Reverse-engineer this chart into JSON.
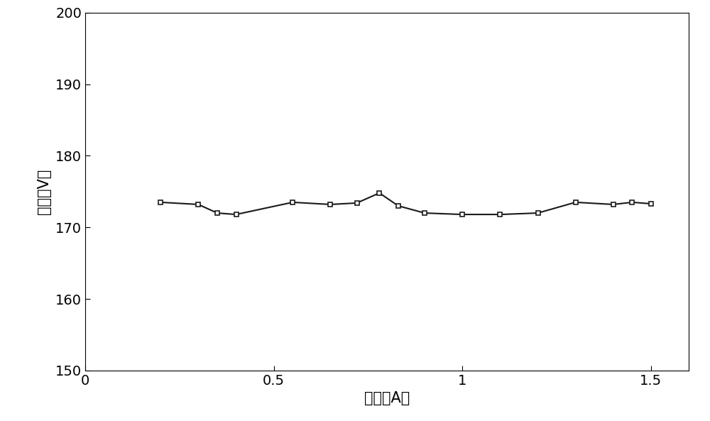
{
  "x": [
    0.2,
    0.3,
    0.35,
    0.4,
    0.55,
    0.65,
    0.72,
    0.78,
    0.83,
    0.9,
    1.0,
    1.1,
    1.2,
    1.3,
    1.4,
    1.45,
    1.5
  ],
  "y": [
    173.5,
    173.2,
    172.0,
    171.8,
    173.5,
    173.2,
    173.4,
    174.8,
    173.0,
    172.0,
    171.8,
    171.8,
    172.0,
    173.5,
    173.2,
    173.5,
    173.3
  ],
  "xlabel": "电流（A）",
  "ylabel": "电压（V）",
  "xlim": [
    0,
    1.6
  ],
  "ylim": [
    150,
    200
  ],
  "xticks": [
    0,
    0.5,
    1.0,
    1.5
  ],
  "xtick_labels": [
    "0",
    "0.5",
    "1",
    "1.5"
  ],
  "yticks": [
    150,
    160,
    170,
    180,
    190,
    200
  ],
  "line_color": "#1a1a1a",
  "marker": "s",
  "markersize": 5,
  "linewidth": 1.5,
  "background_color": "#ffffff",
  "xlabel_fontsize": 15,
  "ylabel_fontsize": 15,
  "tick_fontsize": 14
}
